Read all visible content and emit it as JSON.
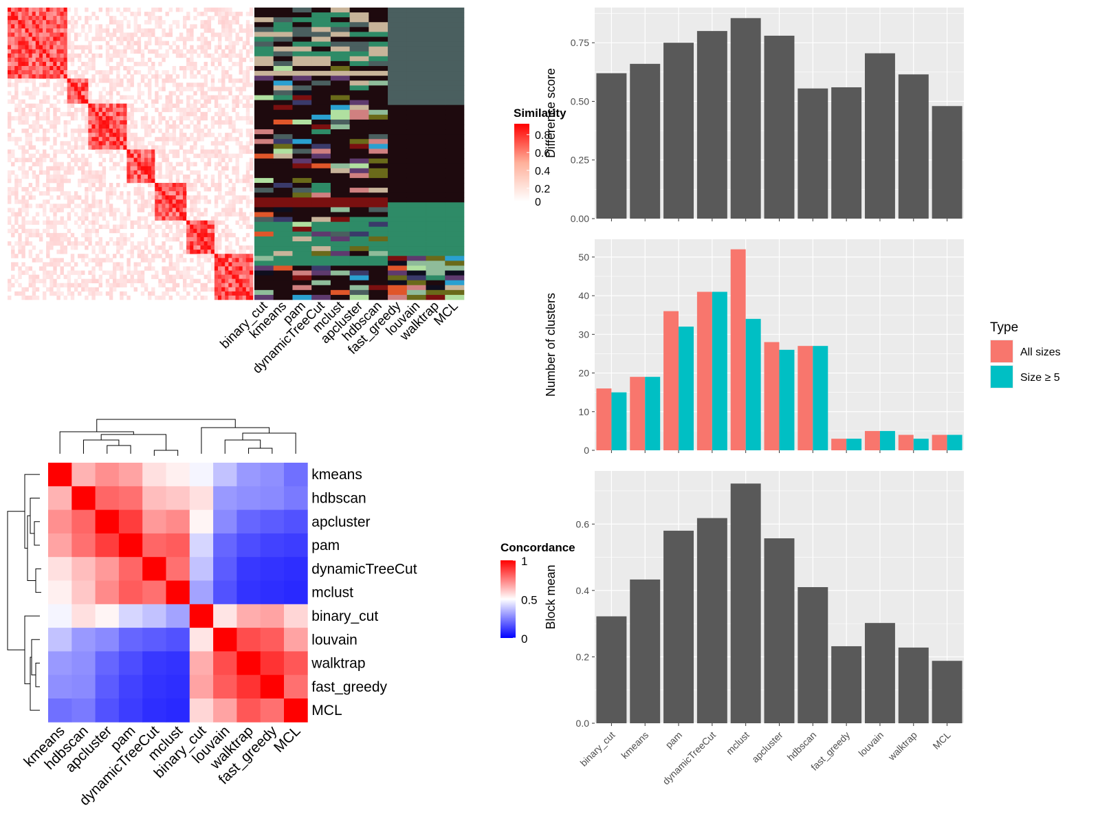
{
  "colors": {
    "panel_bg": "#ebebeb",
    "grid": "#ffffff",
    "bar": "#595959",
    "all_sizes": "#f8766d",
    "size_ge_5": "#00bfc4",
    "heat_high": "#ff0000",
    "heat_mid": "#ffffff",
    "heat_low": "#0000ff"
  },
  "similarity_heatmap": {
    "legend_title": "Similarity",
    "legend_ticks": [
      "0.8",
      "0.6",
      "0.4",
      "0.2",
      "0"
    ],
    "method_columns": [
      "binary_cut",
      "kmeans",
      "pam",
      "dynamicTreeCut",
      "mclust",
      "apcluster",
      "hdbscan",
      "fast_greedy",
      "louvain",
      "walktrap",
      "MCL"
    ]
  },
  "concordance_heatmap": {
    "legend_title": "Concordance",
    "legend_ticks": [
      "1",
      "0.5",
      "0"
    ]
  },
  "chart_data": [
    {
      "type": "bar",
      "ylabel": "Difference score",
      "categories": [
        "binary_cut",
        "kmeans",
        "pam",
        "dynamicTreeCut",
        "mclust",
        "apcluster",
        "hdbscan",
        "fast_greedy",
        "louvain",
        "walktrap",
        "MCL"
      ],
      "values": [
        0.62,
        0.66,
        0.75,
        0.8,
        0.855,
        0.78,
        0.555,
        0.56,
        0.705,
        0.615,
        0.48
      ],
      "ylim": [
        0,
        0.9
      ],
      "yticks": [
        "0.00",
        "0.25",
        "0.50",
        "0.75"
      ],
      "grid": true
    },
    {
      "type": "bar",
      "ylabel": "Number of clusters",
      "categories": [
        "binary_cut",
        "kmeans",
        "pam",
        "dynamicTreeCut",
        "mclust",
        "apcluster",
        "hdbscan",
        "fast_greedy",
        "louvain",
        "walktrap",
        "MCL"
      ],
      "series": [
        {
          "name": "All sizes",
          "values": [
            16,
            19,
            36,
            41,
            52,
            28,
            27,
            3,
            5,
            4,
            4
          ]
        },
        {
          "name": "Size ≥ 5",
          "values": [
            15,
            19,
            32,
            41,
            34,
            26,
            27,
            3,
            5,
            3,
            4
          ]
        }
      ],
      "ylim": [
        0,
        54.6
      ],
      "yticks": [
        "0",
        "10",
        "20",
        "30",
        "40",
        "50"
      ],
      "legend_title": "Type",
      "legend_position": "right",
      "grid": true
    },
    {
      "type": "bar",
      "ylabel": "Block mean",
      "categories": [
        "binary_cut",
        "kmeans",
        "pam",
        "dynamicTreeCut",
        "mclust",
        "apcluster",
        "hdbscan",
        "fast_greedy",
        "louvain",
        "walktrap",
        "MCL"
      ],
      "values": [
        0.322,
        0.433,
        0.58,
        0.618,
        0.722,
        0.557,
        0.41,
        0.232,
        0.302,
        0.228,
        0.188
      ],
      "ylim": [
        0,
        0.76
      ],
      "yticks": [
        "0.0",
        "0.2",
        "0.4",
        "0.6"
      ],
      "grid": true
    },
    {
      "type": "heatmap",
      "rows": [
        "kmeans",
        "hdbscan",
        "apcluster",
        "pam",
        "dynamicTreeCut",
        "mclust",
        "binary_cut",
        "louvain",
        "walktrap",
        "fast_greedy",
        "MCL"
      ],
      "columns": [
        "kmeans",
        "hdbscan",
        "apcluster",
        "pam",
        "dynamicTreeCut",
        "mclust",
        "binary_cut",
        "louvain",
        "walktrap",
        "fast_greedy",
        "MCL"
      ],
      "values": [
        [
          1.0,
          0.65,
          0.72,
          0.68,
          0.56,
          0.53,
          0.48,
          0.38,
          0.3,
          0.28,
          0.22
        ],
        [
          0.65,
          1.0,
          0.8,
          0.78,
          0.63,
          0.61,
          0.56,
          0.3,
          0.28,
          0.27,
          0.24
        ],
        [
          0.72,
          0.8,
          1.0,
          0.88,
          0.7,
          0.73,
          0.52,
          0.27,
          0.2,
          0.18,
          0.16
        ],
        [
          0.68,
          0.78,
          0.88,
          1.0,
          0.8,
          0.82,
          0.42,
          0.2,
          0.15,
          0.13,
          0.12
        ],
        [
          0.56,
          0.63,
          0.7,
          0.8,
          1.0,
          0.78,
          0.38,
          0.18,
          0.11,
          0.1,
          0.09
        ],
        [
          0.53,
          0.61,
          0.73,
          0.82,
          0.78,
          1.0,
          0.32,
          0.16,
          0.1,
          0.09,
          0.08
        ],
        [
          0.48,
          0.56,
          0.52,
          0.42,
          0.38,
          0.32,
          1.0,
          0.55,
          0.66,
          0.68,
          0.58
        ],
        [
          0.38,
          0.3,
          0.27,
          0.2,
          0.18,
          0.16,
          0.55,
          1.0,
          0.85,
          0.82,
          0.68
        ],
        [
          0.3,
          0.28,
          0.2,
          0.15,
          0.11,
          0.1,
          0.66,
          0.85,
          1.0,
          0.9,
          0.83
        ],
        [
          0.28,
          0.27,
          0.18,
          0.13,
          0.1,
          0.09,
          0.68,
          0.82,
          0.9,
          1.0,
          0.78
        ],
        [
          0.22,
          0.24,
          0.16,
          0.12,
          0.09,
          0.08,
          0.58,
          0.68,
          0.83,
          0.78,
          1.0
        ]
      ]
    }
  ]
}
